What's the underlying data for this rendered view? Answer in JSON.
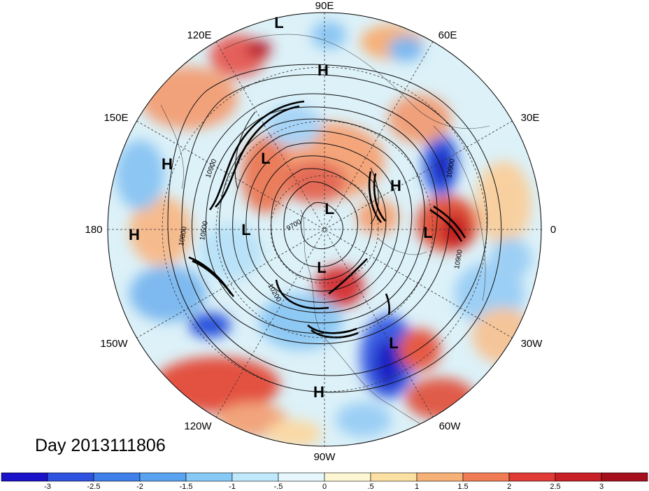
{
  "map": {
    "longitude_labels": [
      "90E",
      "60E",
      "30E",
      "0",
      "30W",
      "60W",
      "90W",
      "120W",
      "150W",
      "180",
      "150E",
      "120E"
    ],
    "pressure_systems": [
      {
        "type": "L",
        "label": "L"
      },
      {
        "type": "H",
        "label": "H"
      },
      {
        "type": "L",
        "label": "L"
      },
      {
        "type": "H",
        "label": "H"
      },
      {
        "type": "H",
        "label": "H"
      },
      {
        "type": "L",
        "label": "L"
      },
      {
        "type": "L",
        "label": "L"
      },
      {
        "type": "L",
        "label": "L"
      },
      {
        "type": "L",
        "label": "L"
      },
      {
        "type": "L",
        "label": "L"
      },
      {
        "type": "H",
        "label": "H"
      },
      {
        "type": "L",
        "label": "L"
      },
      {
        "type": "H",
        "label": "H"
      }
    ],
    "contour_labels": [
      "10900",
      "10800",
      "10600",
      "9700",
      "10200",
      "10900",
      "10900",
      "10900"
    ],
    "date_label": "Day 2013111806"
  },
  "colorbar": {
    "ticks": [
      "-3",
      "-2.5",
      "-2",
      "-1.5",
      "-1",
      "-.5",
      "0",
      ".5",
      "1",
      "1.5",
      "2",
      "2.5",
      "3"
    ],
    "colors": [
      "#1a12c9",
      "#2d52e0",
      "#3f7fea",
      "#5aa3f0",
      "#86c9f5",
      "#bfe9fb",
      "#e6f8fd",
      "#fdf7d4",
      "#fbe0a3",
      "#f6b178",
      "#ef7c55",
      "#e03a35",
      "#c81f26",
      "#a50f1c"
    ]
  }
}
